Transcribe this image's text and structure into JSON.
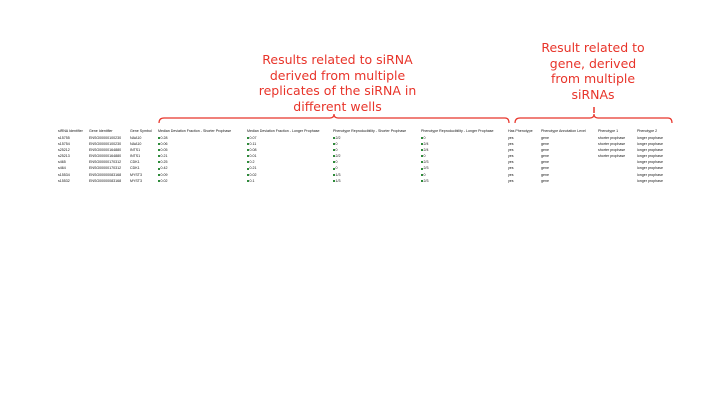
{
  "annotations": {
    "left_lines": [
      "Results related to siRNA",
      "derived from multiple",
      "replicates of the siRNA in",
      "different wells"
    ],
    "right_lines": [
      "Result related to",
      "gene, derived",
      "from multiple",
      "siRNAs"
    ],
    "color": "#e8342a"
  },
  "sheet": {
    "headers": [
      "siRNA Identifier",
      "Gene Identifier",
      "Gene Symbol",
      "Median Deviation Fraction - Shorter Prophase",
      "Median Deviation Fraction - Longer Prophase",
      "Phenotype Reproducibility - Shorter Prophase",
      "Phenotype Reproducibility - Longer Prophase",
      "Has Phenotype",
      "Phenotype Annotation Level",
      "Phenotype 1",
      "Phenotype 2"
    ],
    "rows": [
      [
        "s15755",
        "ENSG00000100230",
        "NAA10",
        "0.28",
        "0.07",
        "2/2",
        "0",
        "yes",
        "gene",
        "shorter prophase",
        "longer prophase"
      ],
      [
        "s15754",
        "ENSG00000100230",
        "NAA10",
        "0.06",
        "0.11",
        "0",
        "2/4",
        "yes",
        "gene",
        "shorter prophase",
        "longer prophase"
      ],
      [
        "s25212",
        "ENSG00000164880",
        "INTS1",
        "0.05",
        "0.08",
        "0",
        "2/4",
        "yes",
        "gene",
        "shorter prophase",
        "longer prophase"
      ],
      [
        "s25213",
        "ENSG00000164880",
        "INTS1",
        "0.21",
        "0.01",
        "2/2",
        "0",
        "yes",
        "gene",
        "shorter prophase",
        "longer prophase"
      ],
      [
        "s465",
        "ENSG00000170312",
        "CDK1",
        "0.25",
        "0.2",
        "0",
        "2/3",
        "yes",
        "gene",
        "",
        "longer prophase"
      ],
      [
        "s464",
        "ENSG00000170312",
        "CDK1",
        "0.42",
        "0.21",
        "0",
        "2/3",
        "yes",
        "gene",
        "",
        "longer prophase"
      ],
      [
        "s15534",
        "ENSG00000083168",
        "MYST3",
        "0.09",
        "0.02",
        "1/3",
        "0",
        "yes",
        "gene",
        "",
        "longer prophase"
      ],
      [
        "s15532",
        "ENSG00000083168",
        "MYST3",
        "0.02",
        "0.1",
        "1/3",
        "2/3",
        "yes",
        "gene",
        "",
        "longer prophase"
      ]
    ]
  }
}
